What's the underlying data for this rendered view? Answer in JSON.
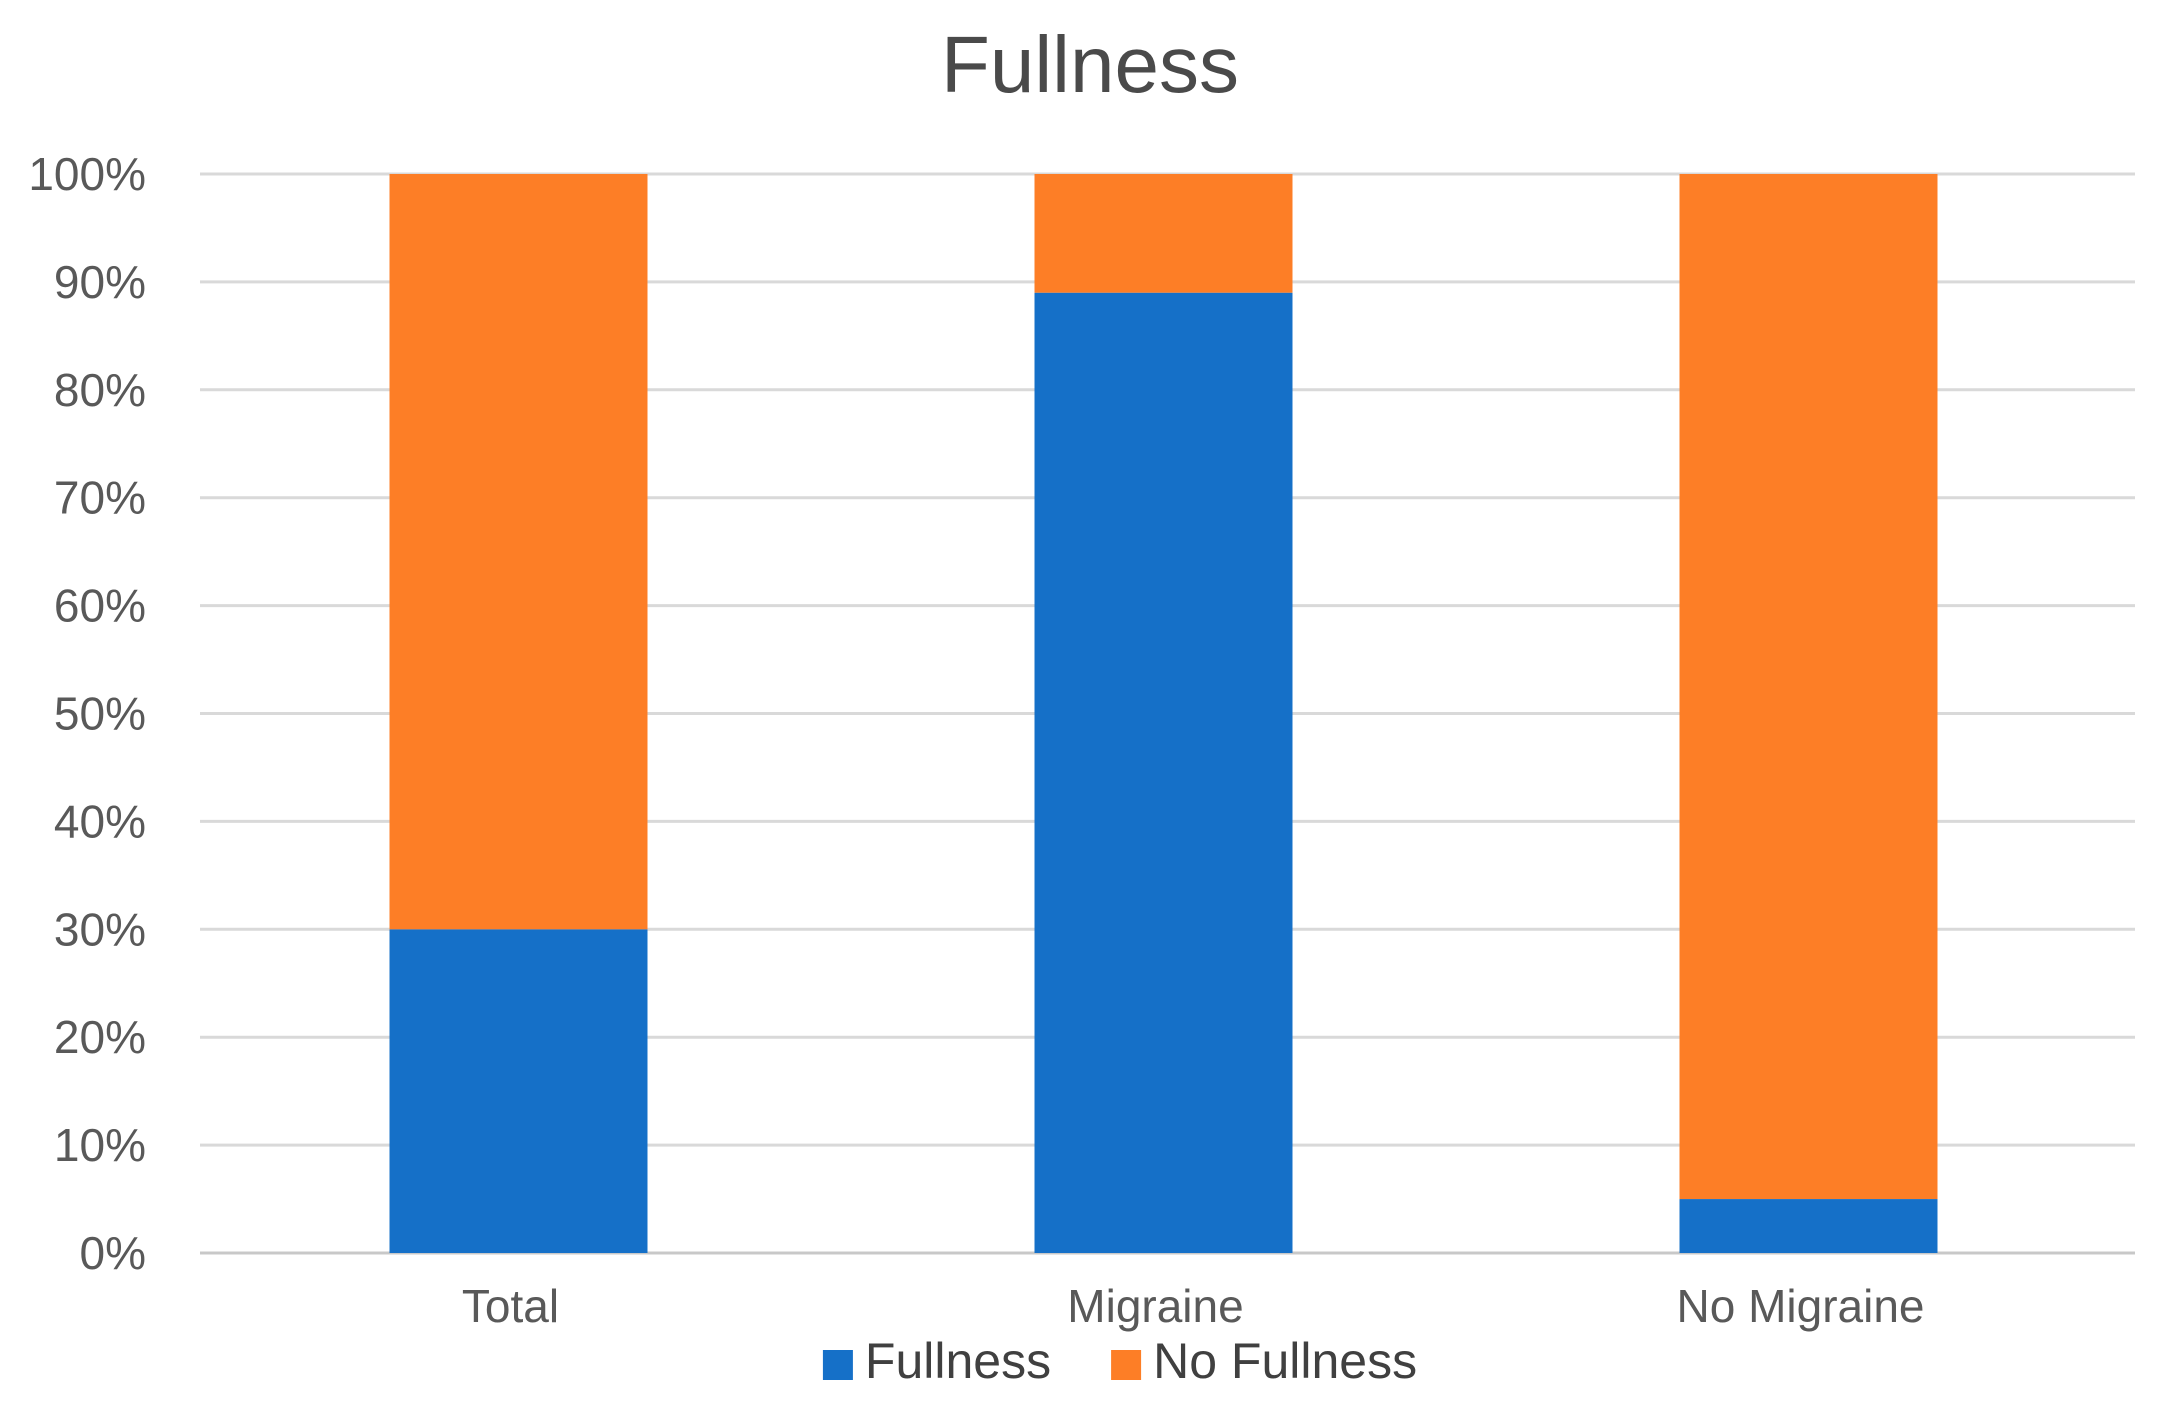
{
  "chart_data": {
    "type": "bar",
    "stacked": true,
    "title": "Fullness",
    "xlabel": "",
    "ylabel": "",
    "categories": [
      "Total",
      "Migraine",
      "No Migraine"
    ],
    "series": [
      {
        "name": "Fullness",
        "color": "#1570C8",
        "values": [
          30,
          89,
          5
        ]
      },
      {
        "name": "No Fullness",
        "color": "#FD7E26",
        "values": [
          70,
          11,
          95
        ]
      }
    ],
    "ylim": [
      0,
      100
    ],
    "yticks": [
      0,
      10,
      20,
      30,
      40,
      50,
      60,
      70,
      80,
      90,
      100
    ],
    "ytick_labels": [
      "0%",
      "10%",
      "20%",
      "30%",
      "40%",
      "50%",
      "60%",
      "70%",
      "80%",
      "90%",
      "100%"
    ],
    "grid": true,
    "legend": "bottom"
  }
}
